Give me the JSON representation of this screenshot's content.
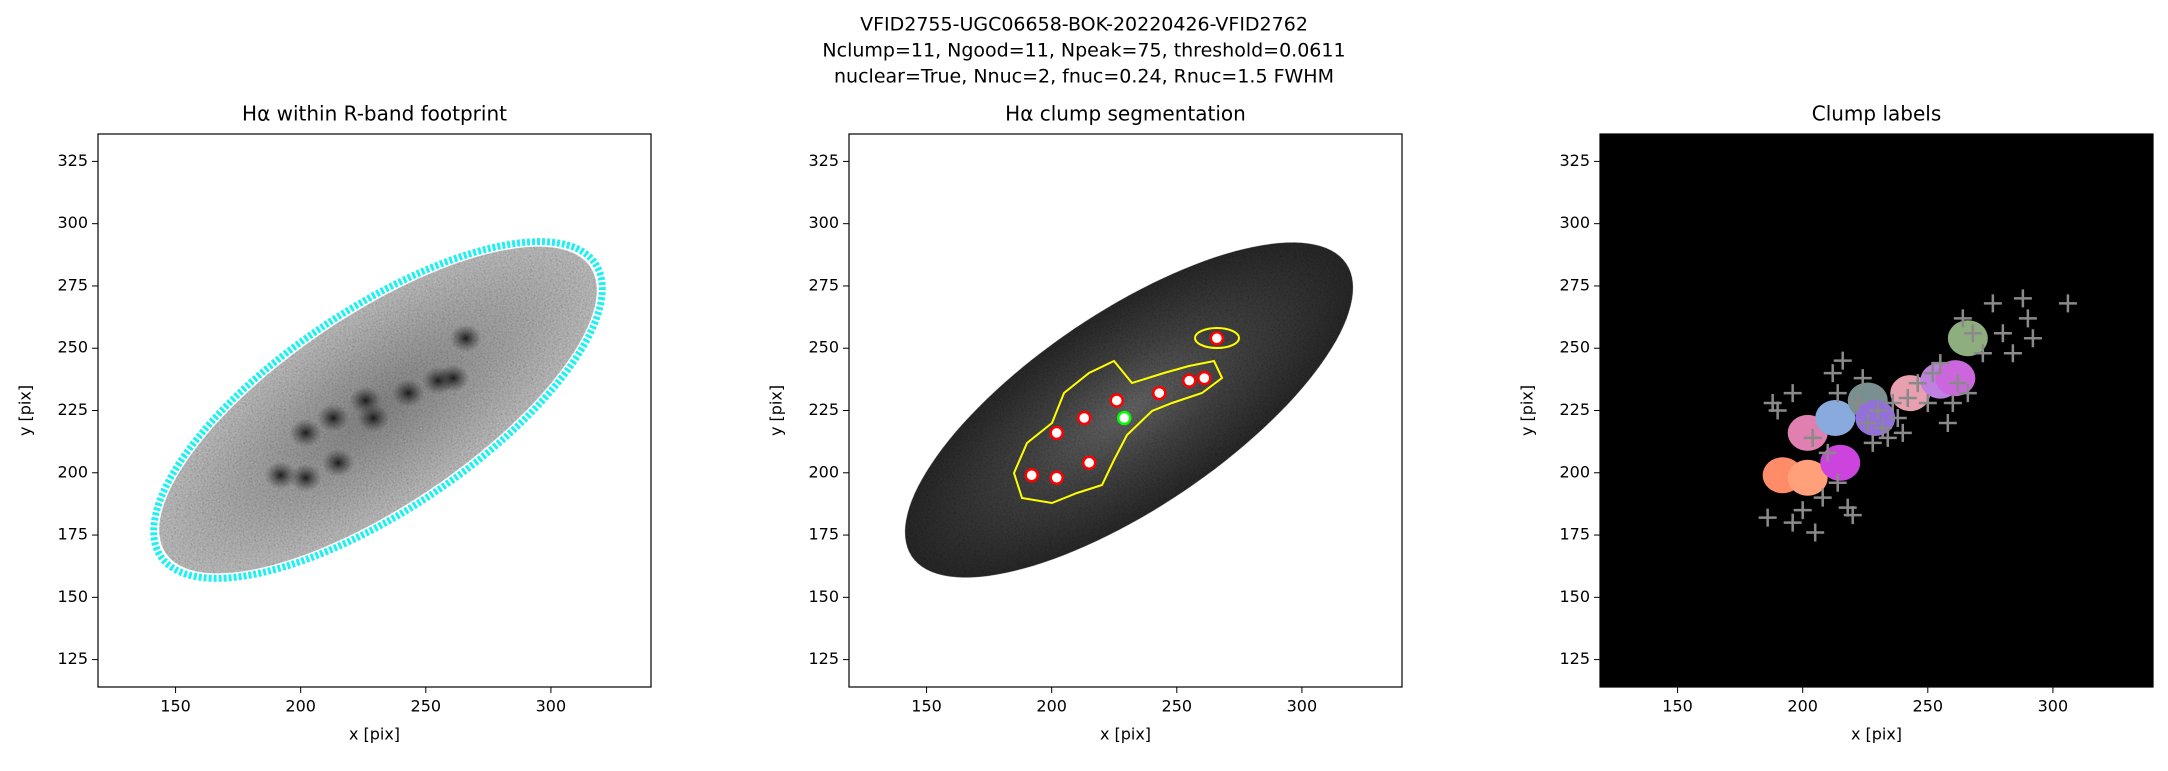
{
  "suptitle": [
    "VFID2755-UGC06658-BOK-20220426-VFID2762",
    "Nclump=11, Ngood=11, Npeak=75, threshold=0.0611",
    "nuclear=True, Nnuc=2, fnuc=0.24, Rnuc=1.5 FWHM"
  ],
  "chart_data": [
    {
      "type": "image",
      "title": "Hα within R-band footprint",
      "xlabel": "x [pix]",
      "ylabel": "y [pix]",
      "xlim": [
        119,
        340
      ],
      "ylim": [
        114,
        336
      ],
      "xticks": [
        150,
        200,
        250,
        300
      ],
      "yticks": [
        125,
        150,
        175,
        200,
        225,
        250,
        275,
        300,
        325
      ]
    },
    {
      "type": "scatter",
      "title": "Hα clump segmentation",
      "xlabel": "x [pix]",
      "ylabel": "y [pix]",
      "xlim": [
        119,
        340
      ],
      "ylim": [
        114,
        336
      ],
      "xticks": [
        150,
        200,
        250,
        300
      ],
      "yticks": [
        125,
        150,
        175,
        200,
        225,
        250,
        275,
        300,
        325
      ],
      "series": [
        {
          "color": "#ff0000",
          "x": [
            192,
            202,
            215,
            202,
            213,
            226,
            243,
            255,
            261,
            266
          ],
          "y": [
            199,
            198,
            204,
            216,
            222,
            229,
            232,
            237,
            238,
            254
          ]
        },
        {
          "color": "#00ff00",
          "x": [
            229
          ],
          "y": [
            222
          ]
        }
      ]
    },
    {
      "type": "scatter",
      "title": "Clump labels",
      "xlabel": "x [pix]",
      "ylabel": "y [pix]",
      "xlim": [
        119,
        340
      ],
      "ylim": [
        114,
        336
      ],
      "xticks": [
        150,
        200,
        250,
        300
      ],
      "yticks": [
        125,
        150,
        175,
        200,
        225,
        250,
        275,
        300,
        325
      ],
      "background": "#000000",
      "label_colors": [
        "#ff8c69",
        "#ffa07a",
        "#cc44dd",
        "#e07fb0",
        "#88aadd",
        "#7a9090",
        "#e8a0b0",
        "#c080e0",
        "#cc66dd",
        "#8fae80",
        "#9370db"
      ],
      "series": [
        {
          "color": "#8a8a8a",
          "x": [
            186,
            188,
            190,
            196,
            200,
            205,
            208,
            210,
            212,
            214,
            216,
            218,
            220,
            222,
            224,
            226,
            228,
            230,
            232,
            234,
            236,
            238,
            240,
            242,
            246,
            250,
            252,
            255,
            258,
            260,
            262,
            264,
            266,
            268,
            272,
            276,
            280,
            284,
            288,
            290,
            292,
            306,
            196,
            214,
            204
          ],
          "y": [
            182,
            228,
            225,
            180,
            185,
            176,
            190,
            208,
            240,
            232,
            245,
            186,
            183,
            228,
            238,
            220,
            212,
            225,
            218,
            214,
            228,
            222,
            216,
            230,
            236,
            228,
            240,
            244,
            220,
            228,
            236,
            262,
            232,
            256,
            248,
            268,
            256,
            248,
            270,
            262,
            254,
            268,
            232,
            196,
            214
          ]
        }
      ]
    }
  ]
}
